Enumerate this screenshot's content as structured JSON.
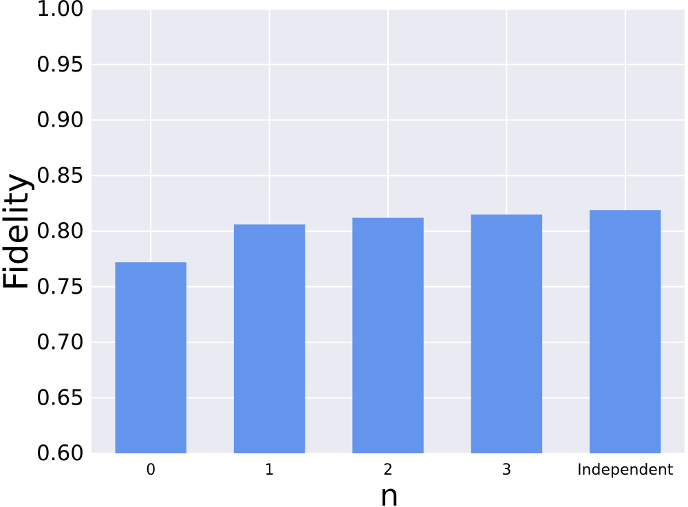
{
  "chart_data": {
    "type": "bar",
    "title": "",
    "xlabel": "n",
    "ylabel": "Fidelity",
    "categories": [
      "0",
      "1",
      "2",
      "3",
      "Independent"
    ],
    "values": [
      0.772,
      0.806,
      0.812,
      0.815,
      0.819
    ],
    "ylim": [
      0.6,
      1.0
    ],
    "yticks": [
      0.6,
      0.65,
      0.7,
      0.75,
      0.8,
      0.85,
      0.9,
      0.95,
      1.0
    ],
    "ytick_labels": [
      "0.60",
      "0.65",
      "0.70",
      "0.75",
      "0.80",
      "0.85",
      "0.90",
      "0.95",
      "1.00"
    ],
    "grid": true,
    "legend": "none",
    "colors": {
      "bar": "#6495ED",
      "plot_background": "#EAEAF2",
      "grid": "#FFFFFF"
    }
  }
}
